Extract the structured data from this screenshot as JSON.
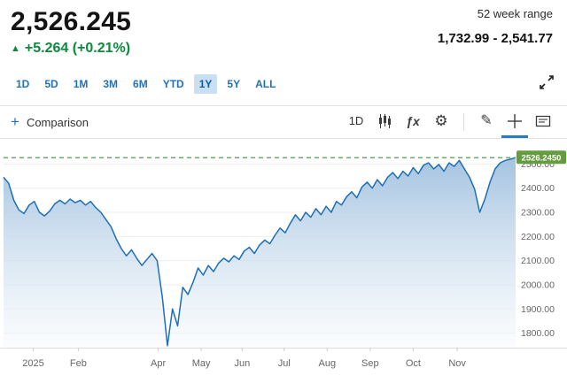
{
  "header": {
    "price": "2,526.245",
    "change_icon": "▲",
    "change": "+5.264 (+0.21%)",
    "range_label": "52 week range",
    "range_value": "1,732.99 - 2,541.77"
  },
  "tabs": {
    "items": [
      "1D",
      "5D",
      "1M",
      "3M",
      "6M",
      "YTD",
      "1Y",
      "5Y",
      "ALL"
    ],
    "active": "1Y"
  },
  "toolbar": {
    "comparison_plus": "+",
    "comparison_label": "Comparison",
    "interval_label": "1D",
    "fx_label": "ƒx",
    "icons": [
      "interval-selector",
      "candlestick-chart-icon",
      "fx-icon",
      "settings-gear-icon",
      "draw-pencil-icon",
      "crosshair-icon",
      "comment-annotation-icon",
      "expand-icon"
    ]
  },
  "colors": {
    "positive_green": "#0c8a3c",
    "link_blue": "#2172b8",
    "tab_active_bg": "#c9dff2",
    "active_tool_underline": "#2b7bc0"
  },
  "chart_data": {
    "type": "area",
    "title": "",
    "xlabel": "",
    "ylabel": "",
    "ylim": [
      1740,
      2560
    ],
    "y_ticks": [
      2500,
      2400,
      2300,
      2200,
      2100,
      2000,
      1900,
      1800
    ],
    "x_labels": [
      {
        "label": "2025",
        "pos": 0.058
      },
      {
        "label": "Feb",
        "pos": 0.146
      },
      {
        "label": "Apr",
        "pos": 0.302
      },
      {
        "label": "May",
        "pos": 0.386
      },
      {
        "label": "Jun",
        "pos": 0.466
      },
      {
        "label": "Jul",
        "pos": 0.548
      },
      {
        "label": "Aug",
        "pos": 0.632
      },
      {
        "label": "Sep",
        "pos": 0.716
      },
      {
        "label": "Oct",
        "pos": 0.8
      },
      {
        "label": "Nov",
        "pos": 0.886
      }
    ],
    "current_price": 2526.245,
    "current_price_label": "2526.2450",
    "grid": true,
    "legend": null,
    "values": [
      2445,
      2420,
      2350,
      2310,
      2295,
      2330,
      2345,
      2300,
      2285,
      2305,
      2335,
      2350,
      2335,
      2355,
      2340,
      2350,
      2330,
      2345,
      2320,
      2300,
      2270,
      2240,
      2190,
      2150,
      2120,
      2145,
      2110,
      2080,
      2105,
      2130,
      2100,
      1950,
      1748,
      1900,
      1830,
      1990,
      1960,
      2010,
      2070,
      2040,
      2080,
      2055,
      2090,
      2110,
      2095,
      2120,
      2105,
      2140,
      2155,
      2130,
      2165,
      2185,
      2170,
      2205,
      2235,
      2215,
      2255,
      2290,
      2265,
      2300,
      2280,
      2315,
      2290,
      2325,
      2300,
      2345,
      2330,
      2365,
      2385,
      2360,
      2405,
      2425,
      2400,
      2435,
      2410,
      2445,
      2465,
      2440,
      2470,
      2450,
      2485,
      2460,
      2495,
      2505,
      2480,
      2498,
      2470,
      2505,
      2490,
      2515,
      2480,
      2445,
      2395,
      2300,
      2355,
      2425,
      2480,
      2505,
      2515,
      2520,
      2526.245
    ],
    "colors": {
      "line": "#1c6fb8",
      "fill_top": "#9fc0de",
      "fill_bottom": "#f7fafd",
      "current_line": "#4c9e4c",
      "badge_bg": "#649c3f",
      "badge_text": "#ffffff",
      "grid": "#ededed",
      "axis_text": "#666666",
      "axis_line": "#dddddd"
    }
  }
}
